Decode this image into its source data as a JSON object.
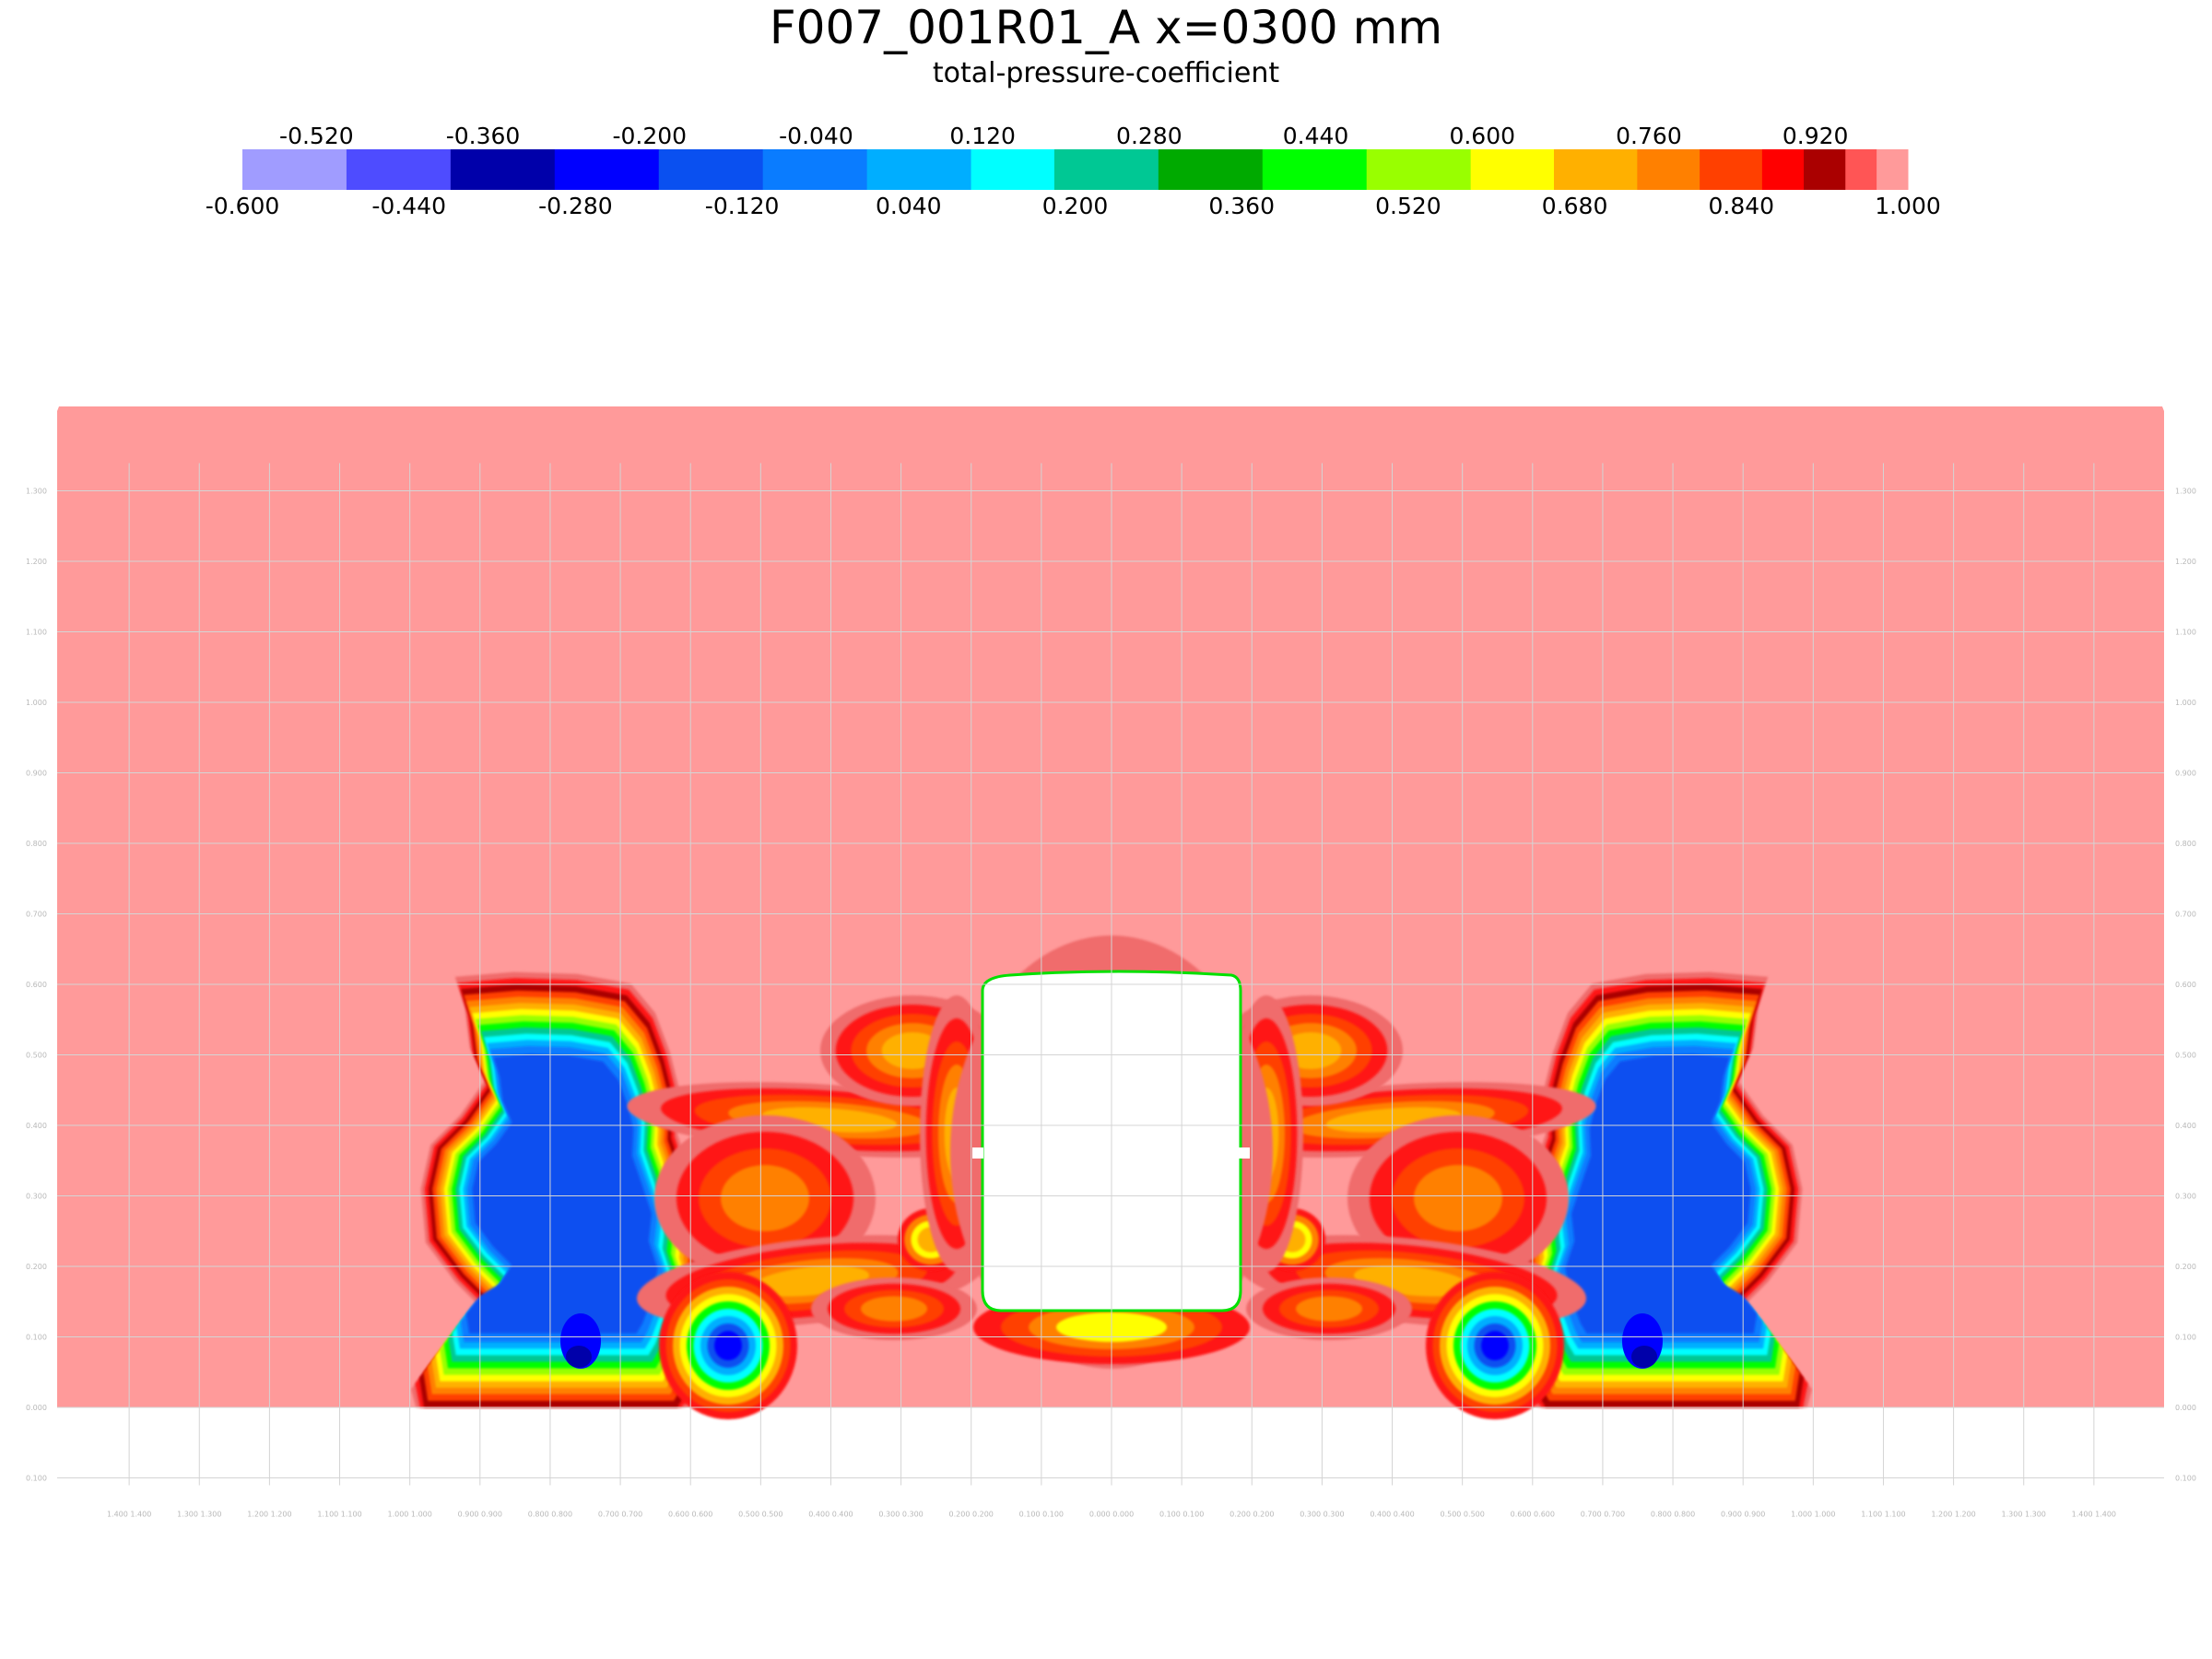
{
  "title": "F007_001R01_A x=0300 mm",
  "subtitle": "total-pressure-coefficient",
  "colorbar": {
    "top_labels": [
      "-0.520",
      "-0.360",
      "-0.200",
      "-0.040",
      "0.120",
      "0.280",
      "0.440",
      "0.600",
      "0.760",
      "0.920"
    ],
    "bottom_labels": [
      "-0.600",
      "-0.440",
      "-0.280",
      "-0.120",
      "0.040",
      "0.200",
      "0.360",
      "0.520",
      "0.680",
      "0.840",
      "1.000"
    ],
    "bands": [
      {
        "from": -0.6,
        "to": -0.5,
        "color": "#a09cff"
      },
      {
        "from": -0.5,
        "to": -0.4,
        "color": "#4e4cff"
      },
      {
        "from": -0.4,
        "to": -0.3,
        "color": "#0000aa"
      },
      {
        "from": -0.3,
        "to": -0.2,
        "color": "#0000ff"
      },
      {
        "from": -0.2,
        "to": -0.1,
        "color": "#0a50f0"
      },
      {
        "from": -0.1,
        "to": 0.0,
        "color": "#0a7cff"
      },
      {
        "from": 0.0,
        "to": 0.1,
        "color": "#00aeff"
      },
      {
        "from": 0.1,
        "to": 0.18,
        "color": "#00ffff"
      },
      {
        "from": 0.18,
        "to": 0.28,
        "color": "#00c894"
      },
      {
        "from": 0.28,
        "to": 0.38,
        "color": "#00aa00"
      },
      {
        "from": 0.38,
        "to": 0.48,
        "color": "#00ff00"
      },
      {
        "from": 0.48,
        "to": 0.58,
        "color": "#99ff00"
      },
      {
        "from": 0.58,
        "to": 0.66,
        "color": "#ffff00"
      },
      {
        "from": 0.66,
        "to": 0.74,
        "color": "#ffb000"
      },
      {
        "from": 0.74,
        "to": 0.8,
        "color": "#ff8000"
      },
      {
        "from": 0.8,
        "to": 0.86,
        "color": "#ff4000"
      },
      {
        "from": 0.86,
        "to": 0.9,
        "color": "#ff0000"
      },
      {
        "from": 0.9,
        "to": 0.94,
        "color": "#aa0000"
      },
      {
        "from": 0.94,
        "to": 0.97,
        "color": "#ff5555"
      },
      {
        "from": 0.97,
        "to": 1.0,
        "color": "#ff9a9a"
      }
    ]
  },
  "chart_data": {
    "type": "heatmap",
    "title": "F007_001R01_A x=0300 mm",
    "subtitle": "total-pressure-coefficient",
    "colorbar_range": [
      -0.6,
      1.0
    ],
    "background_value": 1.0,
    "grid": true,
    "x_range": [
      -1.5,
      1.5
    ],
    "y_range": [
      -0.1,
      1.4
    ],
    "x_ticks": [
      -1.4,
      -1.3,
      -1.2,
      -1.1,
      -1.0,
      -0.9,
      -0.8,
      -0.7,
      -0.6,
      -0.5,
      -0.4,
      -0.3,
      -0.2,
      -0.1,
      0.0,
      0.1,
      0.2,
      0.3,
      0.4,
      0.5,
      0.6,
      0.7,
      0.8,
      0.9,
      1.0,
      1.1,
      1.2,
      1.3,
      1.4
    ],
    "y_ticks": [
      -0.1,
      0.0,
      0.1,
      0.2,
      0.3,
      0.4,
      0.5,
      0.6,
      0.7,
      0.8,
      0.9,
      1.0,
      1.1,
      1.2,
      1.3
    ],
    "x_tick_labels": [
      "1.400 1.400",
      "1.300 1.300",
      "1.200 1.200",
      "1.100 1.100",
      "1.000 1.000",
      "0.900 0.900",
      "0.800 0.800",
      "0.700 0.700",
      "0.600 0.600",
      "0.500 0.500",
      "0.400 0.400",
      "0.300 0.300",
      "0.200 0.200",
      "0.100 0.100",
      "0.000 0.000",
      "0.100 0.100",
      "0.200 0.200",
      "0.300 0.300",
      "0.400 0.400",
      "0.500 0.500",
      "0.600 0.600",
      "0.700 0.700",
      "0.800 0.800",
      "0.900 0.900",
      "1.000 1.000",
      "1.100 1.100",
      "1.200 1.200",
      "1.300 1.300",
      "1.400 1.400"
    ],
    "y_tick_labels": [
      "0.100",
      "0.000",
      "0.100",
      "0.200",
      "0.300",
      "0.400",
      "0.500",
      "0.600",
      "0.700",
      "0.800",
      "0.900",
      "1.000",
      "1.100",
      "1.200",
      "1.300"
    ],
    "regions": [
      {
        "name": "left-wheel-wake",
        "value": -0.15,
        "center": [
          -0.8,
          0.28
        ],
        "extent": [
          0.36,
          0.58
        ]
      },
      {
        "name": "right-wheel-wake",
        "value": -0.15,
        "center": [
          0.8,
          0.28
        ],
        "extent": [
          0.36,
          0.58
        ]
      },
      {
        "name": "left-wheel-core",
        "value": -0.3,
        "center": [
          -0.77,
          0.09
        ]
      },
      {
        "name": "right-wheel-core",
        "value": -0.3,
        "center": [
          0.74,
          0.09
        ]
      },
      {
        "name": "left-inner-vortex",
        "value": -0.2,
        "center": [
          -0.54,
          0.1
        ]
      },
      {
        "name": "right-inner-vortex",
        "value": -0.2,
        "center": [
          0.52,
          0.1
        ]
      },
      {
        "name": "body-wake",
        "value": 0.75,
        "center": [
          0.0,
          0.31
        ],
        "extent": [
          0.4,
          0.62
        ]
      },
      {
        "name": "body-lower-edge",
        "value": 0.62,
        "center": [
          0.0,
          0.12
        ]
      }
    ]
  }
}
